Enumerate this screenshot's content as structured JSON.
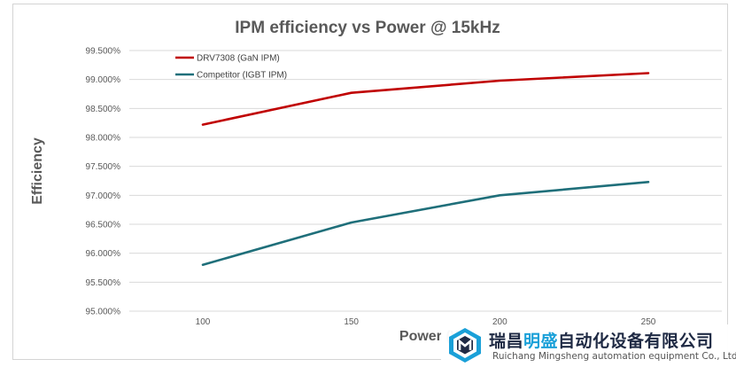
{
  "chart_data": {
    "type": "line",
    "title": "IPM efficiency vs Power @ 15kHz",
    "xlabel": "Power (W)",
    "ylabel": "Efficiency",
    "x": [
      100,
      150,
      200,
      250
    ],
    "x_ticks": [
      "100",
      "150",
      "200",
      "250"
    ],
    "ylim": [
      0.95,
      0.995
    ],
    "y_ticks": [
      "95.000%",
      "95.500%",
      "96.000%",
      "96.500%",
      "97.000%",
      "97.500%",
      "98.000%",
      "98.500%",
      "99.000%",
      "99.500%"
    ],
    "grid": true,
    "legend_position": "top-left",
    "series": [
      {
        "name": "DRV7308 (GaN IPM)",
        "color": "#c00000",
        "values": [
          0.9822,
          0.9877,
          0.9898,
          0.9911
        ]
      },
      {
        "name": "Competitor (IGBT IPM)",
        "color": "#1f6f7a",
        "values": [
          0.958,
          0.9653,
          0.97,
          0.9723
        ]
      }
    ]
  },
  "watermark": {
    "name_part1": "瑞昌",
    "name_highlight": "明盛",
    "name_part2": "自动化设备有限公司",
    "english": "Ruichang Mingsheng automation equipment Co., Ltd",
    "highlight_color": "#1aa0d8"
  }
}
